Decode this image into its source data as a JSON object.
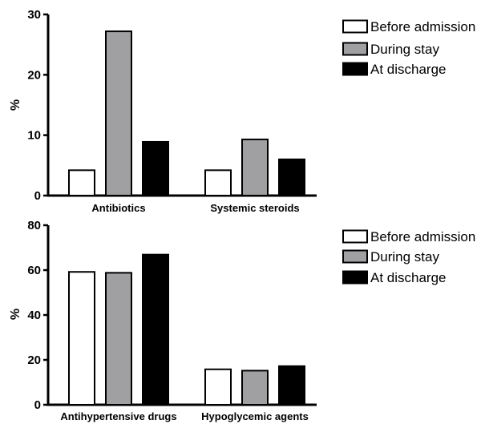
{
  "chart_data": [
    {
      "type": "bar",
      "categories": [
        "Antibiotics",
        "Systemic steroids"
      ],
      "series": [
        {
          "name": "Before admission",
          "values": [
            4.2,
            4.2
          ],
          "color": "#ffffff"
        },
        {
          "name": "During stay",
          "values": [
            27.2,
            9.3
          ],
          "color": "#a0a0a2"
        },
        {
          "name": "At discharge",
          "values": [
            8.9,
            6.0
          ],
          "color": "#000000"
        }
      ],
      "ylabel": "%",
      "ylim": [
        0,
        30
      ],
      "yticks": [
        0,
        10,
        20,
        30
      ],
      "grid": false,
      "legend_position": "top-right"
    },
    {
      "type": "bar",
      "categories": [
        "Antihypertensive drugs",
        "Hypoglycemic agents"
      ],
      "series": [
        {
          "name": "Before admission",
          "values": [
            59.2,
            15.8
          ],
          "color": "#ffffff"
        },
        {
          "name": "During stay",
          "values": [
            58.8,
            15.2
          ],
          "color": "#a0a0a2"
        },
        {
          "name": "At discharge",
          "values": [
            66.9,
            17.2
          ],
          "color": "#000000"
        }
      ],
      "ylabel": "%",
      "ylim": [
        0,
        80
      ],
      "yticks": [
        0,
        20,
        40,
        60,
        80
      ],
      "grid": false,
      "legend_position": "top-right"
    }
  ]
}
